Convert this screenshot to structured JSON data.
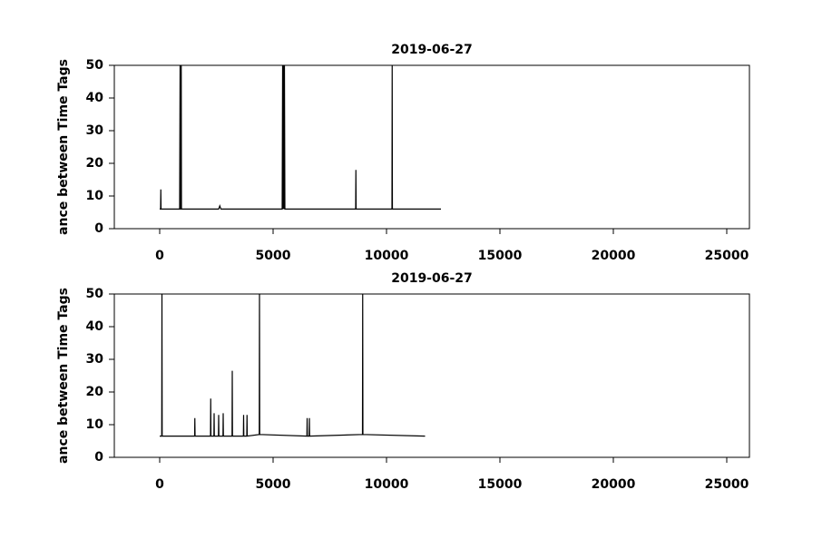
{
  "chart_data": [
    {
      "type": "line",
      "title": "2019-06-27",
      "y_label": "ance between Time Tags",
      "x": [
        0,
        40,
        50,
        60,
        880,
        900,
        920,
        940,
        950,
        960,
        2600,
        2650,
        2700,
        5400,
        5420,
        5440,
        5460,
        5480,
        5500,
        5520,
        8640,
        8650,
        8660,
        10240,
        10250,
        10260,
        12400
      ],
      "series": [
        {
          "color": "#000000",
          "values": [
            6,
            6,
            12,
            6,
            6,
            50,
            6,
            6,
            50,
            6,
            6,
            7,
            6,
            6,
            50,
            6,
            50,
            6,
            50,
            6,
            6,
            18,
            6,
            6,
            50,
            6,
            6
          ]
        }
      ],
      "xlim": [
        -2000,
        26000
      ],
      "ylim": [
        0,
        50
      ],
      "xticks": [
        0,
        5000,
        10000,
        15000,
        20000,
        25000
      ],
      "yticks": [
        0,
        10,
        20,
        30,
        40,
        50
      ]
    },
    {
      "type": "line",
      "title": "2019-06-27",
      "y_label": "ance between Time Tags",
      "x": [
        0,
        90,
        100,
        110,
        1540,
        1550,
        1560,
        2240,
        2250,
        2260,
        2390,
        2400,
        2410,
        2590,
        2600,
        2610,
        2790,
        2800,
        2810,
        3190,
        3200,
        3210,
        3690,
        3700,
        3710,
        3840,
        3850,
        3860,
        4390,
        4400,
        4410,
        6490,
        6500,
        6510,
        6590,
        6600,
        6610,
        8940,
        8950,
        8960,
        11700
      ],
      "series": [
        {
          "color": "#000000",
          "values": [
            6.5,
            6.5,
            50,
            6.5,
            6.5,
            12,
            6.5,
            6.5,
            18,
            6.5,
            6.5,
            13.5,
            6.5,
            6.5,
            13,
            6.5,
            6.5,
            13.5,
            6.5,
            6.5,
            26.5,
            6.5,
            6.5,
            13,
            6.5,
            6.5,
            13,
            6.5,
            7,
            50,
            7,
            6.5,
            12,
            6.5,
            6.5,
            12,
            6.5,
            7,
            50,
            7,
            6.5
          ]
        }
      ],
      "xlim": [
        -2000,
        26000
      ],
      "ylim": [
        0,
        50
      ],
      "xticks": [
        0,
        5000,
        10000,
        15000,
        20000,
        25000
      ],
      "yticks": [
        0,
        10,
        20,
        30,
        40,
        50
      ]
    }
  ]
}
